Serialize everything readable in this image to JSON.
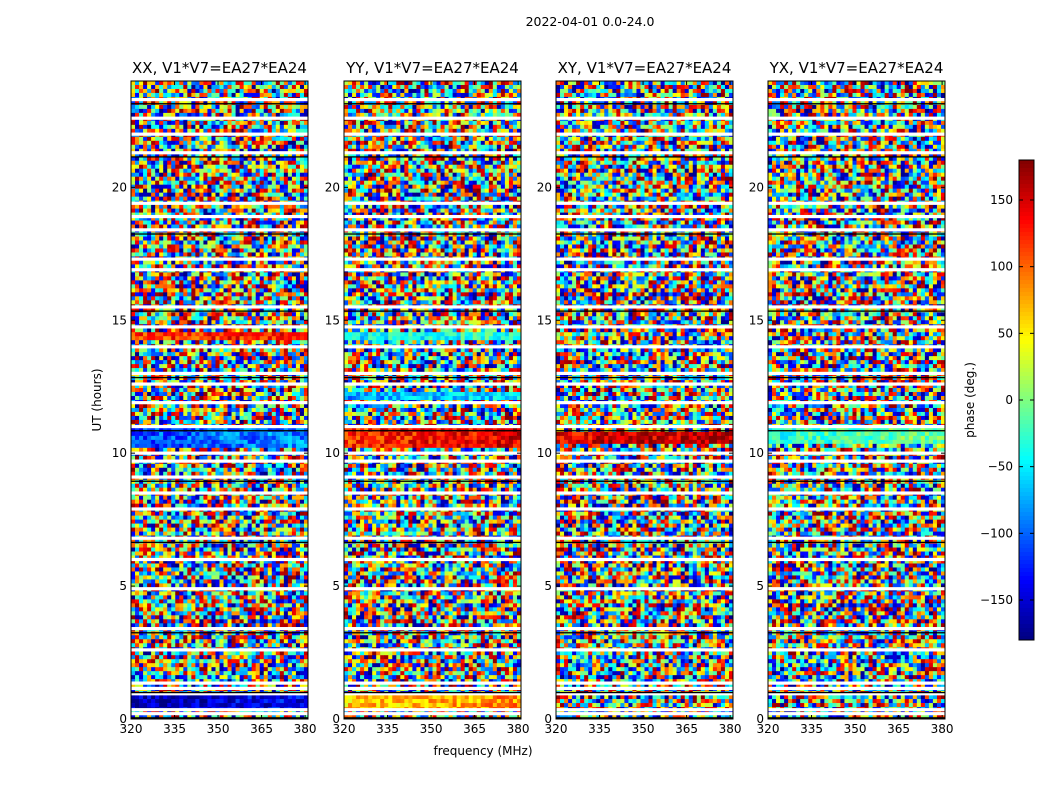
{
  "chart_data": {
    "type": "heatmap",
    "suptitle": "2022-04-01 0.0-24.0",
    "xlabel": "frequency (MHz)",
    "ylabel": "UT (hours)",
    "xlim": [
      320,
      381
    ],
    "ylim": [
      0,
      24
    ],
    "xticks": [
      320,
      335,
      350,
      365,
      380
    ],
    "yticks": [
      0,
      5,
      10,
      15,
      20
    ],
    "panels": [
      {
        "title": "XX, V1*V7=EA27*EA24",
        "bands": [
          {
            "t0": 0.3,
            "t1": 0.9,
            "phase": -160
          },
          {
            "t0": 10.2,
            "t1": 10.9,
            "phase": -110
          },
          {
            "t0": 14.2,
            "t1": 14.6,
            "phase": 110
          }
        ]
      },
      {
        "title": "YY, V1*V7=EA27*EA24",
        "bands": [
          {
            "t0": 0.3,
            "t1": 0.9,
            "phase": 60
          },
          {
            "t0": 10.2,
            "t1": 10.9,
            "phase": 120
          },
          {
            "t0": 14.2,
            "t1": 14.6,
            "phase": -50
          },
          {
            "t0": 12.0,
            "t1": 12.3,
            "phase": -80
          }
        ]
      },
      {
        "title": "XY, V1*V7=EA27*EA24",
        "bands": [
          {
            "t0": 10.3,
            "t1": 10.8,
            "phase": 140
          }
        ]
      },
      {
        "title": "YX, V1*V7=EA27*EA24",
        "bands": [
          {
            "t0": 10.4,
            "t1": 10.9,
            "phase": -30
          }
        ]
      }
    ],
    "gaps_ut": [
      0.2,
      0.35,
      0.95,
      1.15,
      1.35,
      2.6,
      3.4,
      4.9,
      6.0,
      6.8,
      7.9,
      8.5,
      9.1,
      9.7,
      10.0,
      11.0,
      11.9,
      12.6,
      13.0,
      14.0,
      14.75,
      15.5,
      16.9,
      17.3,
      18.4,
      18.9,
      19.4,
      21.3,
      22.0,
      22.6,
      23.3
    ],
    "colorbar": {
      "label": "phase (deg.)",
      "range": [
        -180,
        180
      ],
      "ticks": [
        -150,
        -100,
        -50,
        0,
        50,
        100,
        150
      ],
      "colormap": "jet"
    }
  }
}
